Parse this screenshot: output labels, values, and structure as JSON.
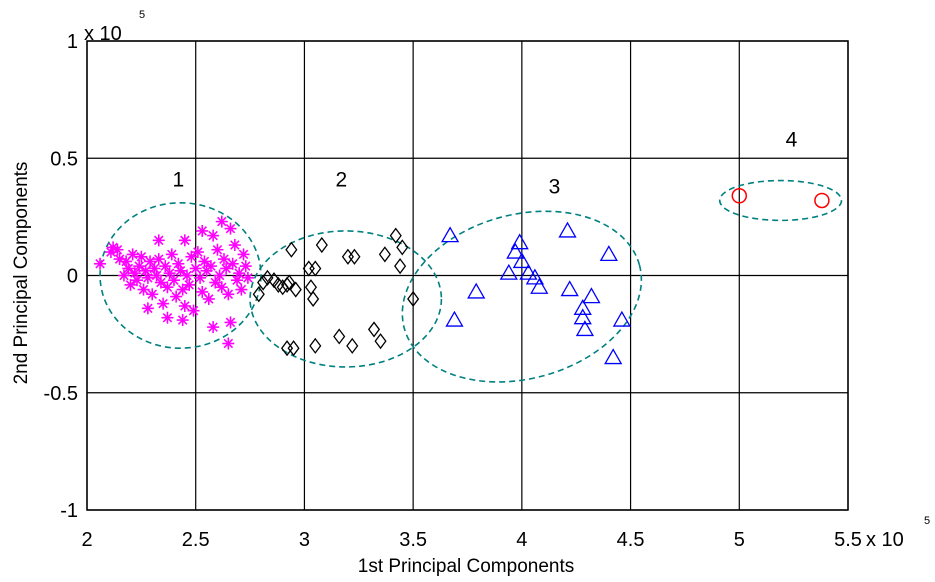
{
  "chart_data": {
    "type": "scatter",
    "title": "",
    "xlabel": "1st Principal Components",
    "ylabel": "2nd Principal Components",
    "x_multiplier": "x 10",
    "x_multiplier_exp": "5",
    "y_multiplier": "x 10",
    "y_multiplier_exp": "5",
    "xlim": [
      2,
      5.5
    ],
    "ylim": [
      -1,
      1
    ],
    "xticks": [
      2,
      2.5,
      3,
      3.5,
      4,
      4.5,
      5,
      5.5
    ],
    "xtick_labels": [
      "2",
      "2.5",
      "3",
      "3.5",
      "4",
      "4.5",
      "5",
      "5.5"
    ],
    "yticks": [
      -1,
      -0.5,
      0,
      0.5,
      1
    ],
    "ytick_labels": [
      "-1",
      "-0.5",
      "0",
      "0.5",
      "1"
    ],
    "grid": true,
    "series": [
      {
        "marker": "asterisk",
        "color": "#ff00ff",
        "points": [
          [
            2.06,
            0.05
          ],
          [
            2.11,
            0.1
          ],
          [
            2.12,
            0.12
          ],
          [
            2.14,
            0.11
          ],
          [
            2.15,
            0.07
          ],
          [
            2.17,
            0.0
          ],
          [
            2.18,
            0.06
          ],
          [
            2.19,
            0.03
          ],
          [
            2.2,
            -0.04
          ],
          [
            2.21,
            0.09
          ],
          [
            2.22,
            0.01
          ],
          [
            2.23,
            -0.02
          ],
          [
            2.24,
            0.04
          ],
          [
            2.25,
            0.08
          ],
          [
            2.26,
            -0.06
          ],
          [
            2.27,
            0.02
          ],
          [
            2.28,
            -0.01
          ],
          [
            2.29,
            0.06
          ],
          [
            2.3,
            -0.08
          ],
          [
            2.31,
            0.03
          ],
          [
            2.32,
            0.0
          ],
          [
            2.33,
            0.07
          ],
          [
            2.34,
            -0.03
          ],
          [
            2.35,
            -0.12
          ],
          [
            2.36,
            0.04
          ],
          [
            2.37,
            -0.05
          ],
          [
            2.38,
            0.01
          ],
          [
            2.39,
            0.09
          ],
          [
            2.4,
            -0.02
          ],
          [
            2.41,
            -0.09
          ],
          [
            2.42,
            0.05
          ],
          [
            2.43,
            0.02
          ],
          [
            2.44,
            -0.06
          ],
          [
            2.45,
            0.15
          ],
          [
            2.46,
            0.0
          ],
          [
            2.47,
            -0.04
          ],
          [
            2.48,
            0.08
          ],
          [
            2.49,
            -0.15
          ],
          [
            2.5,
            0.03
          ],
          [
            2.51,
            0.1
          ],
          [
            2.52,
            -0.01
          ],
          [
            2.53,
            -0.07
          ],
          [
            2.54,
            0.06
          ],
          [
            2.55,
            0.02
          ],
          [
            2.56,
            -0.1
          ],
          [
            2.57,
            0.04
          ],
          [
            2.58,
            0.17
          ],
          [
            2.59,
            -0.03
          ],
          [
            2.6,
            0.11
          ],
          [
            2.61,
            0.0
          ],
          [
            2.62,
            -0.05
          ],
          [
            2.63,
            0.07
          ],
          [
            2.64,
            0.03
          ],
          [
            2.65,
            -0.08
          ],
          [
            2.66,
            0.2
          ],
          [
            2.67,
            0.05
          ],
          [
            2.68,
            0.13
          ],
          [
            2.69,
            -0.02
          ],
          [
            2.7,
            0.01
          ],
          [
            2.71,
            -0.06
          ],
          [
            2.72,
            0.09
          ],
          [
            2.73,
            0.04
          ],
          [
            2.74,
            -0.01
          ],
          [
            2.65,
            -0.29
          ],
          [
            2.66,
            -0.2
          ],
          [
            2.28,
            -0.14
          ],
          [
            2.37,
            -0.18
          ],
          [
            2.45,
            -0.13
          ],
          [
            2.58,
            -0.22
          ],
          [
            2.62,
            0.23
          ],
          [
            2.53,
            0.19
          ],
          [
            2.33,
            0.15
          ],
          [
            2.44,
            -0.19
          ]
        ]
      },
      {
        "marker": "diamond",
        "color": "#000000",
        "points": [
          [
            2.79,
            -0.08
          ],
          [
            2.81,
            -0.03
          ],
          [
            2.83,
            -0.01
          ],
          [
            2.86,
            -0.02
          ],
          [
            2.88,
            -0.04
          ],
          [
            2.9,
            -0.05
          ],
          [
            2.92,
            -0.04
          ],
          [
            2.93,
            -0.03
          ],
          [
            2.94,
            0.11
          ],
          [
            2.96,
            -0.06
          ],
          [
            2.92,
            -0.31
          ],
          [
            2.95,
            -0.31
          ],
          [
            3.02,
            0.03
          ],
          [
            3.03,
            -0.05
          ],
          [
            3.04,
            -0.1
          ],
          [
            3.05,
            0.03
          ],
          [
            3.05,
            -0.3
          ],
          [
            3.08,
            0.13
          ],
          [
            3.16,
            -0.26
          ],
          [
            3.2,
            0.08
          ],
          [
            3.22,
            -0.3
          ],
          [
            3.23,
            0.08
          ],
          [
            3.32,
            -0.23
          ],
          [
            3.35,
            -0.28
          ],
          [
            3.37,
            0.09
          ],
          [
            3.42,
            0.17
          ],
          [
            3.44,
            0.04
          ],
          [
            3.45,
            0.12
          ],
          [
            3.5,
            -0.1
          ]
        ]
      },
      {
        "marker": "triangle",
        "color": "#0000ff",
        "points": [
          [
            3.67,
            0.17
          ],
          [
            3.69,
            -0.19
          ],
          [
            3.79,
            -0.07
          ],
          [
            3.94,
            0.01
          ],
          [
            3.97,
            0.1
          ],
          [
            3.99,
            0.14
          ],
          [
            4.0,
            0.06
          ],
          [
            4.03,
            0.01
          ],
          [
            4.06,
            -0.01
          ],
          [
            4.08,
            -0.05
          ],
          [
            4.21,
            0.19
          ],
          [
            4.22,
            -0.06
          ],
          [
            4.28,
            -0.14
          ],
          [
            4.28,
            -0.18
          ],
          [
            4.29,
            -0.23
          ],
          [
            4.32,
            -0.09
          ],
          [
            4.4,
            0.09
          ],
          [
            4.42,
            -0.35
          ],
          [
            4.46,
            -0.19
          ]
        ]
      },
      {
        "marker": "circle",
        "color": "#ff0000",
        "points": [
          [
            5.0,
            0.34
          ],
          [
            5.38,
            0.32
          ]
        ]
      }
    ],
    "clusters": [
      {
        "label": "1",
        "cx": 2.43,
        "cy": 0.0,
        "rx": 0.37,
        "ry": 0.31,
        "angle": 0,
        "label_x": 2.42,
        "label_y": 0.38
      },
      {
        "label": "2",
        "cx": 3.19,
        "cy": -0.1,
        "rx": 0.44,
        "ry": 0.29,
        "angle": 0,
        "label_x": 3.17,
        "label_y": 0.38
      },
      {
        "label": "3",
        "cx": 4.0,
        "cy": -0.09,
        "rx": 0.56,
        "ry": 0.35,
        "angle": -15,
        "label_x": 4.15,
        "label_y": 0.35
      },
      {
        "label": "4",
        "cx": 5.19,
        "cy": 0.32,
        "rx": 0.28,
        "ry": 0.085,
        "angle": 0,
        "label_x": 5.24,
        "label_y": 0.55
      }
    ],
    "cluster_color": "#008080"
  }
}
